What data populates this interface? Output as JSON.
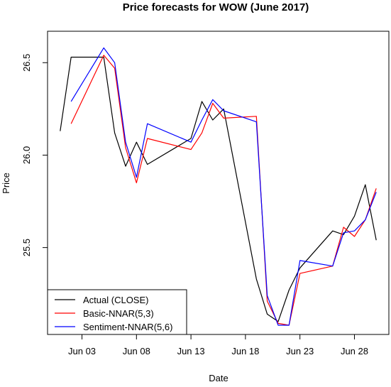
{
  "chart_data": {
    "type": "line",
    "title": "Price forecasts for WOW (June 2017)",
    "xlabel": "Date",
    "ylabel": "Price",
    "xlim": [
      "2017-06-01",
      "2017-06-30"
    ],
    "ylim": [
      25.03,
      26.67
    ],
    "x_ticks": [
      "2017-06-03",
      "2017-06-08",
      "2017-06-13",
      "2017-06-18",
      "2017-06-23",
      "2017-06-28"
    ],
    "x_tick_labels": [
      "Jun 03",
      "Jun 08",
      "Jun 13",
      "Jun 18",
      "Jun 23",
      "Jun 28"
    ],
    "y_ticks": [
      25.5,
      26.0,
      26.5
    ],
    "y_tick_labels": [
      "25.5",
      "26.0",
      "26.5"
    ],
    "grid": false,
    "legend_position": "bottom-left",
    "series": [
      {
        "name": "Actual (CLOSE)",
        "color": "#000000",
        "points": [
          {
            "x": "2017-06-01",
            "y": 26.13
          },
          {
            "x": "2017-06-02",
            "y": 26.53
          },
          {
            "x": "2017-06-05",
            "y": 26.53
          },
          {
            "x": "2017-06-06",
            "y": 26.12
          },
          {
            "x": "2017-06-07",
            "y": 25.94
          },
          {
            "x": "2017-06-08",
            "y": 26.07
          },
          {
            "x": "2017-06-09",
            "y": 25.95
          },
          {
            "x": "2017-06-13",
            "y": 26.09
          },
          {
            "x": "2017-06-14",
            "y": 26.29
          },
          {
            "x": "2017-06-15",
            "y": 26.19
          },
          {
            "x": "2017-06-16",
            "y": 26.25
          },
          {
            "x": "2017-06-19",
            "y": 25.33
          },
          {
            "x": "2017-06-20",
            "y": 25.14
          },
          {
            "x": "2017-06-21",
            "y": 25.1
          },
          {
            "x": "2017-06-22",
            "y": 25.27
          },
          {
            "x": "2017-06-23",
            "y": 25.39
          },
          {
            "x": "2017-06-26",
            "y": 25.59
          },
          {
            "x": "2017-06-27",
            "y": 25.57
          },
          {
            "x": "2017-06-28",
            "y": 25.67
          },
          {
            "x": "2017-06-29",
            "y": 25.84
          },
          {
            "x": "2017-06-30",
            "y": 25.54
          }
        ]
      },
      {
        "name": "Basic-NNAR(5,3)",
        "color": "#ff0000",
        "points": [
          {
            "x": "2017-06-02",
            "y": 26.17
          },
          {
            "x": "2017-06-05",
            "y": 26.54
          },
          {
            "x": "2017-06-06",
            "y": 26.47
          },
          {
            "x": "2017-06-07",
            "y": 26.04
          },
          {
            "x": "2017-06-08",
            "y": 25.85
          },
          {
            "x": "2017-06-09",
            "y": 26.09
          },
          {
            "x": "2017-06-13",
            "y": 26.03
          },
          {
            "x": "2017-06-14",
            "y": 26.12
          },
          {
            "x": "2017-06-15",
            "y": 26.28
          },
          {
            "x": "2017-06-16",
            "y": 26.2
          },
          {
            "x": "2017-06-19",
            "y": 26.21
          },
          {
            "x": "2017-06-20",
            "y": 25.21
          },
          {
            "x": "2017-06-21",
            "y": 25.09
          },
          {
            "x": "2017-06-22",
            "y": 25.08
          },
          {
            "x": "2017-06-23",
            "y": 25.36
          },
          {
            "x": "2017-06-26",
            "y": 25.4
          },
          {
            "x": "2017-06-27",
            "y": 25.61
          },
          {
            "x": "2017-06-28",
            "y": 25.56
          },
          {
            "x": "2017-06-29",
            "y": 25.65
          },
          {
            "x": "2017-06-30",
            "y": 25.82
          }
        ]
      },
      {
        "name": "Sentiment-NNAR(5,6)",
        "color": "#0000ff",
        "points": [
          {
            "x": "2017-06-02",
            "y": 26.29
          },
          {
            "x": "2017-06-05",
            "y": 26.58
          },
          {
            "x": "2017-06-06",
            "y": 26.5
          },
          {
            "x": "2017-06-07",
            "y": 26.07
          },
          {
            "x": "2017-06-08",
            "y": 25.88
          },
          {
            "x": "2017-06-09",
            "y": 26.17
          },
          {
            "x": "2017-06-13",
            "y": 26.07
          },
          {
            "x": "2017-06-14",
            "y": 26.19
          },
          {
            "x": "2017-06-15",
            "y": 26.3
          },
          {
            "x": "2017-06-16",
            "y": 26.24
          },
          {
            "x": "2017-06-19",
            "y": 26.18
          },
          {
            "x": "2017-06-20",
            "y": 25.24
          },
          {
            "x": "2017-06-21",
            "y": 25.08
          },
          {
            "x": "2017-06-22",
            "y": 25.08
          },
          {
            "x": "2017-06-23",
            "y": 25.43
          },
          {
            "x": "2017-06-26",
            "y": 25.4
          },
          {
            "x": "2017-06-27",
            "y": 25.58
          },
          {
            "x": "2017-06-28",
            "y": 25.59
          },
          {
            "x": "2017-06-29",
            "y": 25.65
          },
          {
            "x": "2017-06-30",
            "y": 25.8
          }
        ]
      }
    ]
  }
}
